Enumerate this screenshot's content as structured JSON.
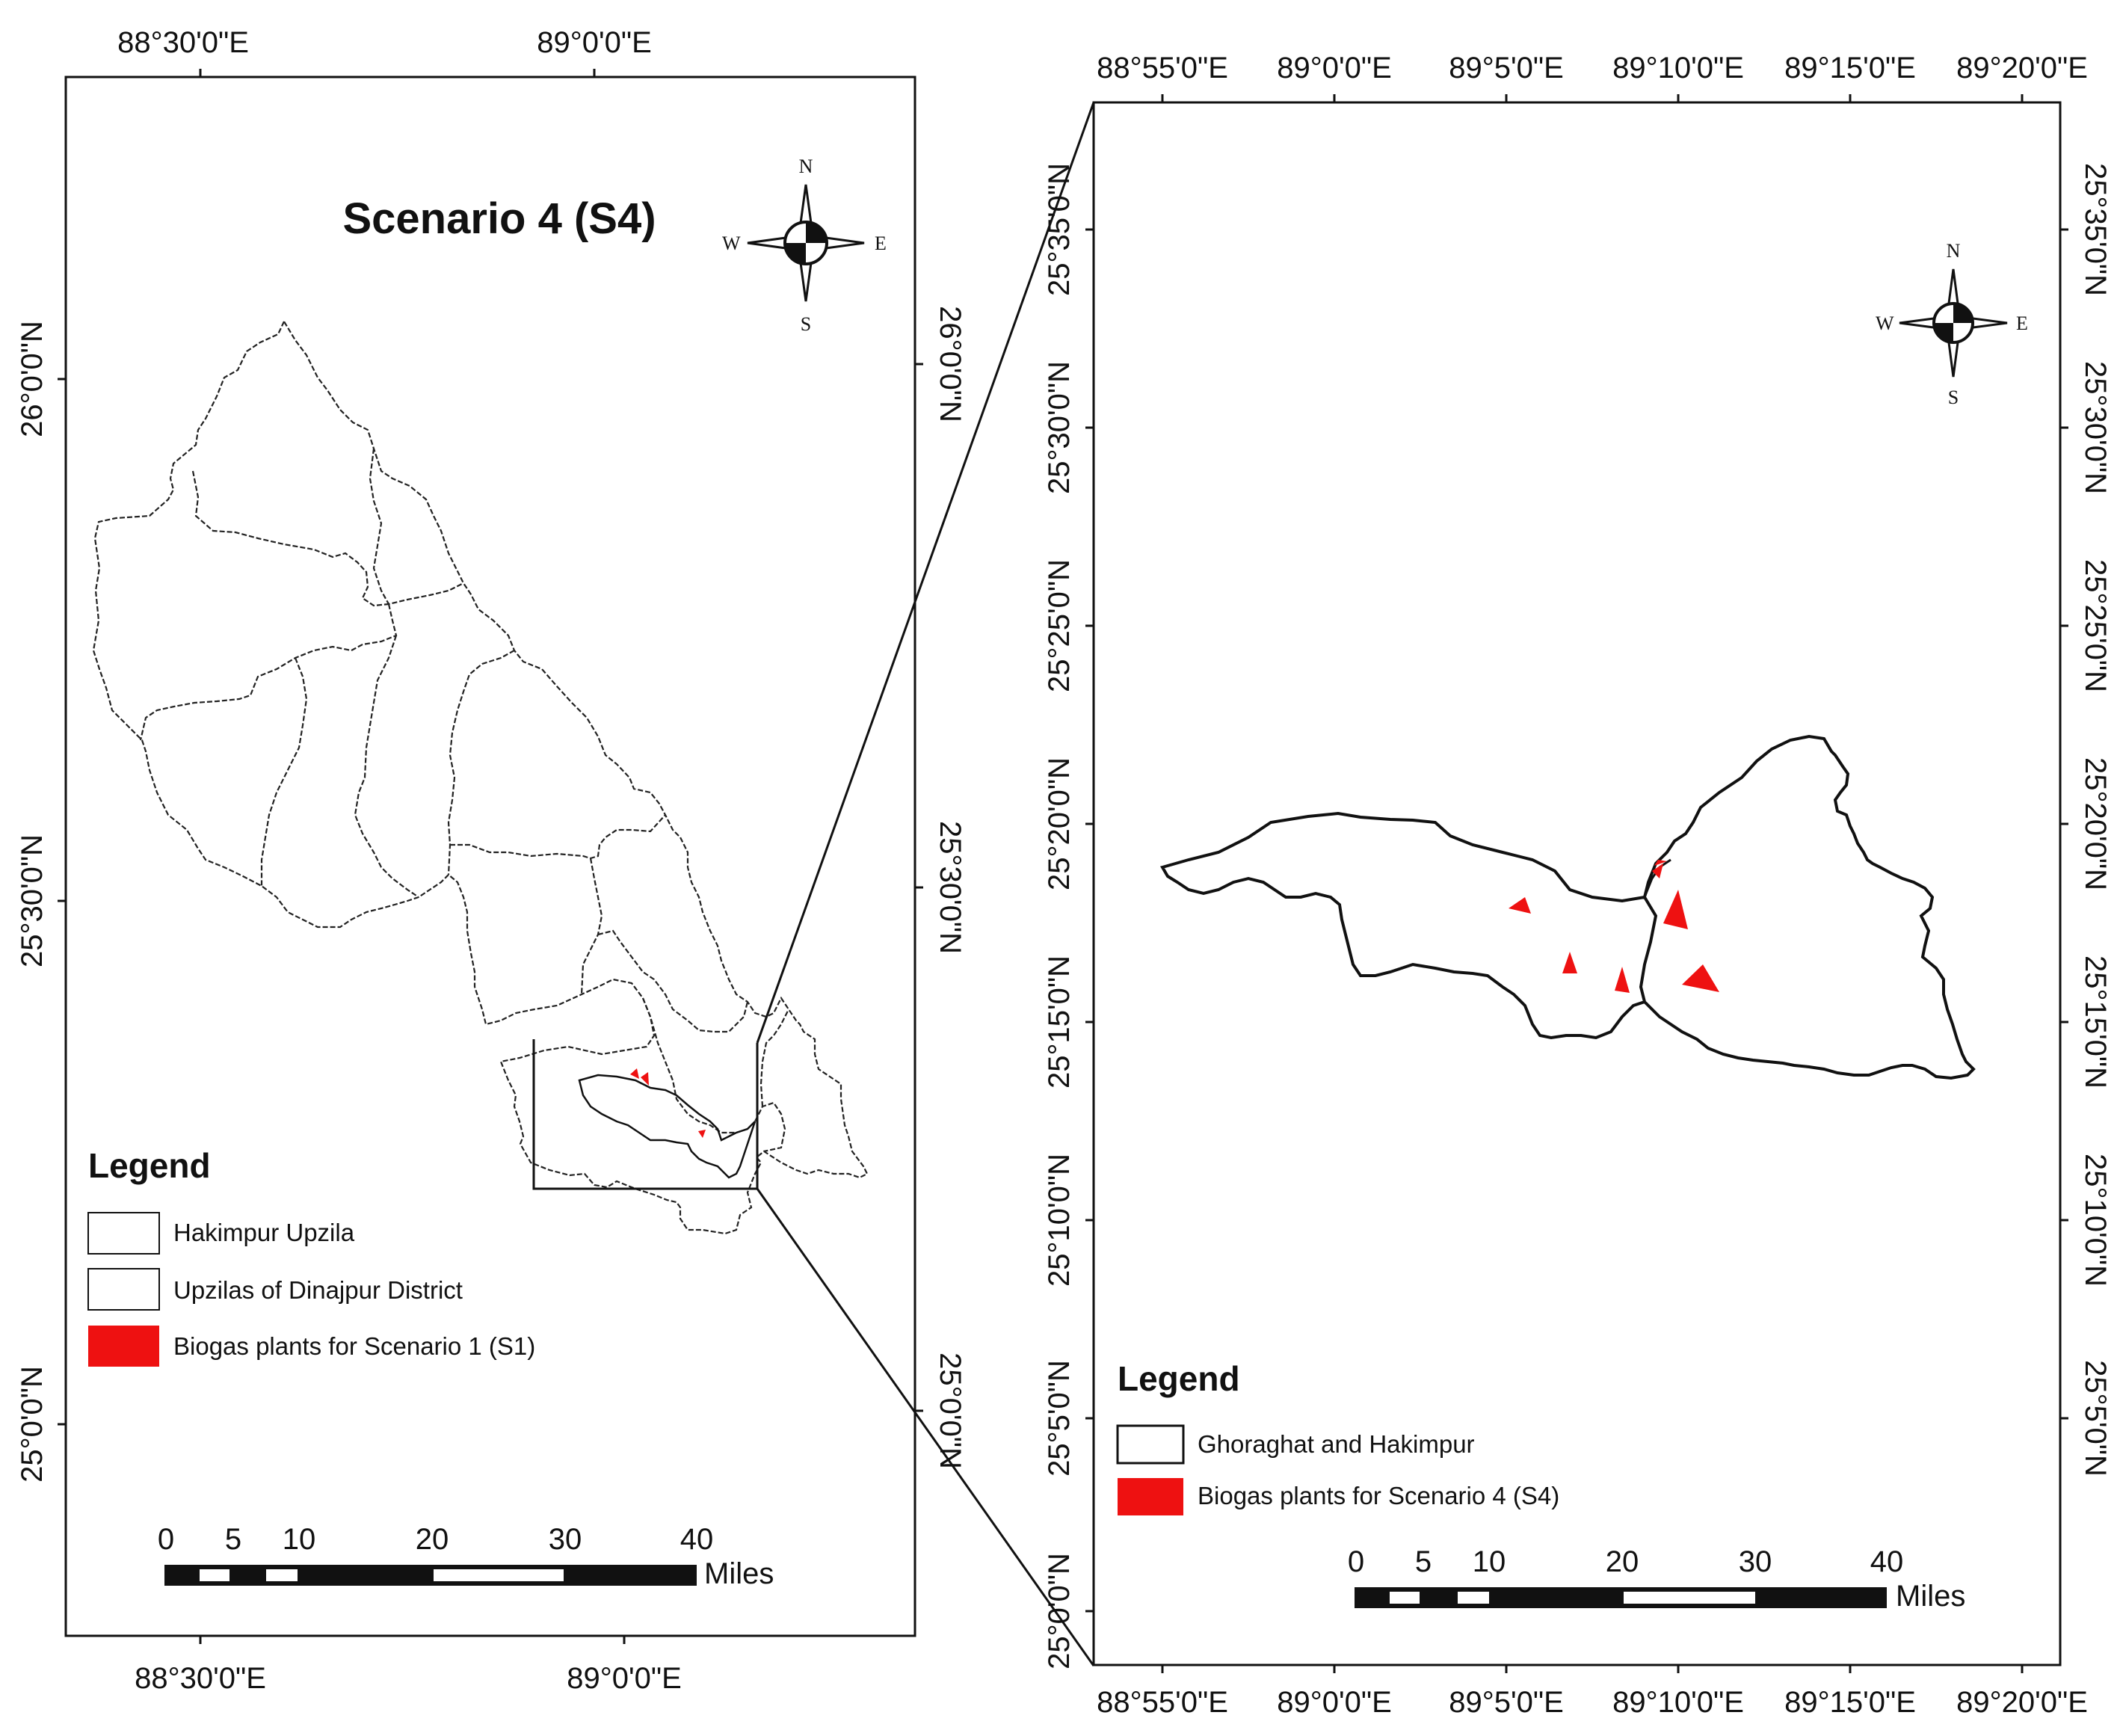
{
  "left_map": {
    "title": "Scenario 4 (S4)",
    "top_ticks": [
      "88°30'0\"E",
      "89°0'0\"E"
    ],
    "bottom_ticks": [
      "88°30'0\"E",
      "89°0'0\"E"
    ],
    "left_ticks": [
      "26°0'0\"N",
      "25°30'0\"N",
      "25°0'0\"N"
    ],
    "right_ticks": [
      "26°0'0\"N",
      "25°30'0\"N",
      "25°0'0\"N"
    ],
    "legend": {
      "title": "Legend",
      "items": [
        {
          "label": "Hakimpur Upzila",
          "swatch": "outline"
        },
        {
          "label": "Upzilas of Dinajpur District",
          "swatch": "outline"
        },
        {
          "label": "Biogas plants for Scenario 1 (S1)",
          "swatch": "fill"
        }
      ]
    },
    "scale": {
      "labels": [
        "0",
        "5",
        "10",
        "20",
        "30",
        "40"
      ],
      "values": [
        0,
        5,
        10,
        20,
        30,
        40
      ],
      "unit": "Miles"
    },
    "compass": {
      "n": "N",
      "s": "S",
      "e": "E",
      "w": "W"
    }
  },
  "right_map": {
    "top_ticks": [
      "88°55'0\"E",
      "89°0'0\"E",
      "89°5'0\"E",
      "89°10'0\"E",
      "89°15'0\"E",
      "89°20'0\"E"
    ],
    "bottom_ticks": [
      "88°55'0\"E",
      "89°0'0\"E",
      "89°5'0\"E",
      "89°10'0\"E",
      "89°15'0\"E",
      "89°20'0\"E"
    ],
    "left_ticks": [
      "25°35'0\"N",
      "25°30'0\"N",
      "25°25'0\"N",
      "25°20'0\"N",
      "25°15'0\"N",
      "25°10'0\"N",
      "25°5'0\"N",
      "25°0'0\"N"
    ],
    "right_ticks": [
      "25°35'0\"N",
      "25°30'0\"N",
      "25°25'0\"N",
      "25°20'0\"N",
      "25°15'0\"N",
      "25°10'0\"N",
      "25°5'0\"N"
    ],
    "legend": {
      "title": "Legend",
      "items": [
        {
          "label": "Ghoraghat and Hakimpur",
          "swatch": "outline"
        },
        {
          "label": "Biogas plants for Scenario 4 (S4)",
          "swatch": "fill"
        }
      ]
    },
    "scale": {
      "labels": [
        "0",
        "5",
        "10",
        "20",
        "30",
        "40"
      ],
      "values": [
        0,
        5,
        10,
        20,
        30,
        40
      ],
      "unit": "Miles"
    },
    "compass": {
      "n": "N",
      "s": "S",
      "e": "E",
      "w": "W"
    }
  },
  "colors": {
    "plant": "#ee1111",
    "line": "#111111",
    "boundary": "#222222"
  }
}
